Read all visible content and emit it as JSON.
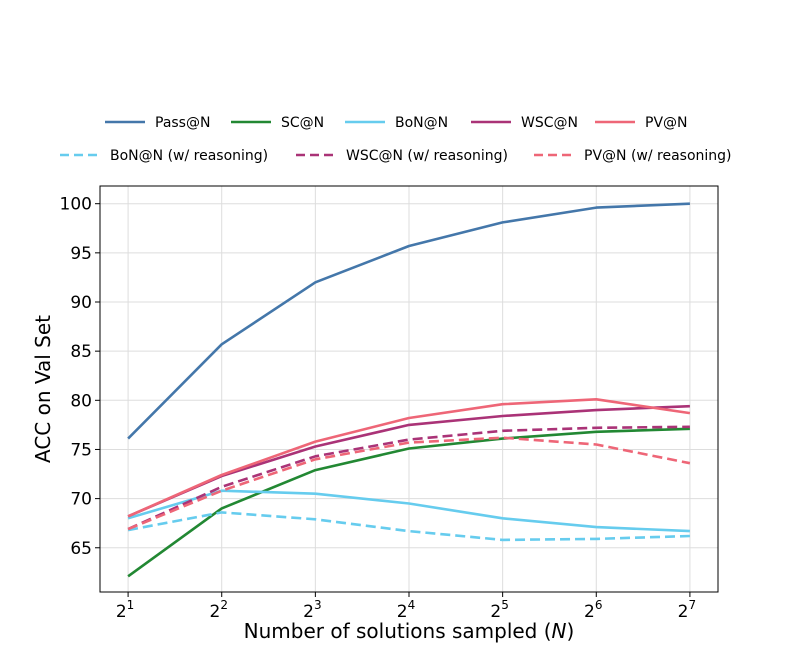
{
  "chart_data": {
    "type": "line",
    "title": "",
    "xlabel_prefix": "Number of solutions sampled (",
    "xlabel_var": "N",
    "xlabel_suffix": ")",
    "ylabel": "ACC on Val Set",
    "x": [
      1,
      2,
      3,
      4,
      5,
      6,
      7
    ],
    "x_tick_base": "2",
    "x_tick_exponents": [
      "1",
      "2",
      "3",
      "4",
      "5",
      "6",
      "7"
    ],
    "ylim": [
      60.5,
      101.8
    ],
    "y_ticks": [
      65,
      70,
      75,
      80,
      85,
      90,
      95,
      100
    ],
    "grid": true,
    "legend_position": "top",
    "series": [
      {
        "name": "Pass@N",
        "color": "#4477AA",
        "dash": "solid",
        "values": [
          76.1,
          85.7,
          92.0,
          95.7,
          98.1,
          99.6,
          100.0
        ]
      },
      {
        "name": "SC@N",
        "color": "#228833",
        "dash": "solid",
        "values": [
          62.1,
          69.0,
          72.9,
          75.1,
          76.1,
          76.8,
          77.1
        ]
      },
      {
        "name": "BoN@N",
        "color": "#66CCEE",
        "dash": "solid",
        "values": [
          68.0,
          70.8,
          70.5,
          69.5,
          68.0,
          67.1,
          66.7
        ]
      },
      {
        "name": "WSC@N",
        "color": "#AA3377",
        "dash": "solid",
        "values": [
          68.2,
          72.3,
          75.3,
          77.5,
          78.4,
          79.0,
          79.4
        ]
      },
      {
        "name": "PV@N",
        "color": "#EE6677",
        "dash": "solid",
        "values": [
          68.2,
          72.4,
          75.8,
          78.2,
          79.6,
          80.1,
          78.7
        ]
      },
      {
        "name": "BoN@N (w/ reasoning)",
        "color": "#66CCEE",
        "dash": "dashed",
        "values": [
          66.8,
          68.6,
          67.9,
          66.7,
          65.8,
          65.9,
          66.2
        ]
      },
      {
        "name": "WSC@N (w/ reasoning)",
        "color": "#AA3377",
        "dash": "dashed",
        "values": [
          66.9,
          71.2,
          74.3,
          76.0,
          76.9,
          77.2,
          77.3
        ]
      },
      {
        "name": "PV@N (w/ reasoning)",
        "color": "#EE6677",
        "dash": "dashed",
        "values": [
          66.9,
          70.8,
          74.0,
          75.7,
          76.2,
          75.5,
          73.6
        ]
      }
    ]
  }
}
